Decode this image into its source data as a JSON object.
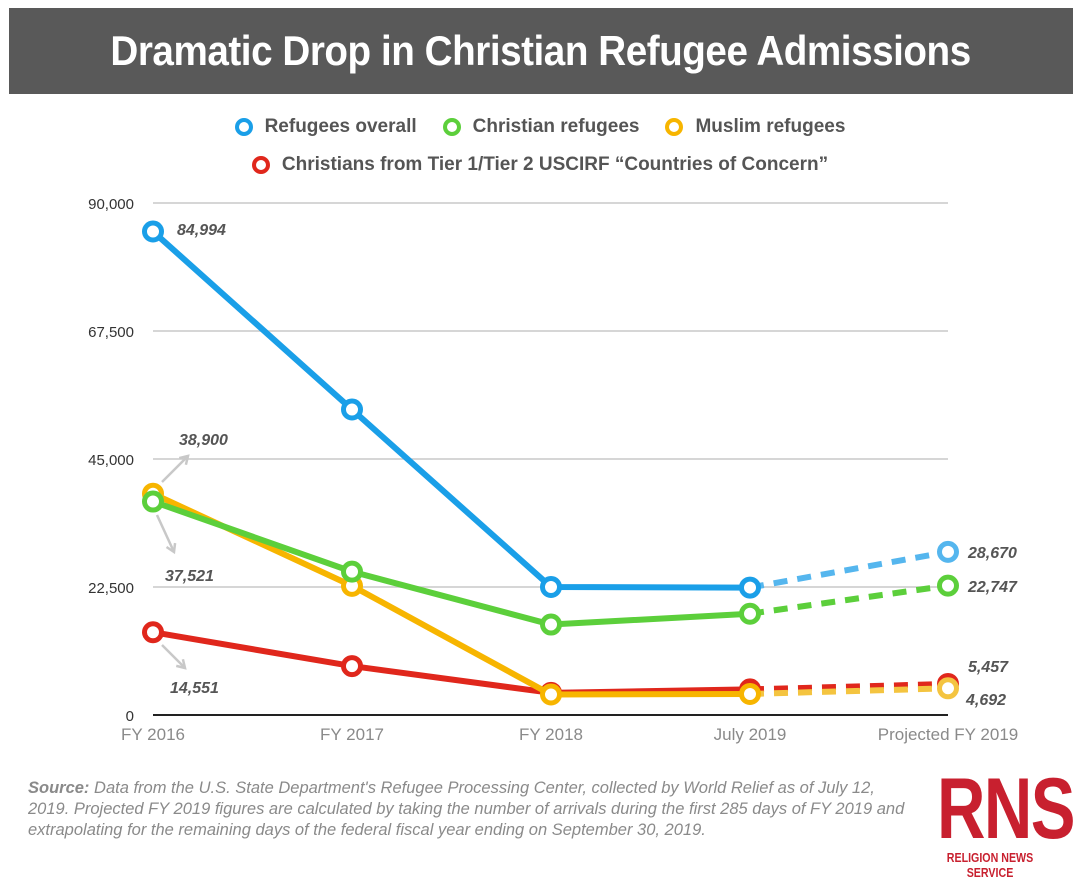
{
  "chart_data": {
    "type": "line",
    "title": "Dramatic Drop in Christian Refugee Admissions",
    "categories": [
      "FY 2016",
      "FY 2017",
      "FY 2018",
      "July 2019",
      "Projected FY 2019"
    ],
    "ylim": [
      0,
      90000
    ],
    "yticks": [
      "0",
      "22,500",
      "45,000",
      "67,500",
      "90,000"
    ],
    "ytick_values": [
      0,
      22500,
      45000,
      67500,
      90000
    ],
    "grid": true,
    "legend_position": "top-center",
    "projected_from_index": 3,
    "series": [
      {
        "name": "Refugees overall",
        "color": "#1a9fe8",
        "projected_color": "#55b6ee",
        "values": [
          84994,
          53700,
          22500,
          22400,
          28670
        ],
        "labels": {
          "0": "84,994",
          "4": "28,670"
        }
      },
      {
        "name": "Christian refugees",
        "color": "#5ccf3b",
        "projected_color": "#5ccf3b",
        "values": [
          37521,
          25200,
          15900,
          17800,
          22747
        ],
        "labels": {
          "0": "37,521",
          "4": "22,747"
        }
      },
      {
        "name": "Muslim refugees",
        "color": "#f7b500",
        "projected_color": "#f4c440",
        "values": [
          38900,
          22700,
          3600,
          3700,
          4692
        ],
        "labels": {
          "0": "38,900",
          "4": "4,692"
        }
      },
      {
        "name": "Christians from Tier 1/Tier 2 USCIRF “Countries of Concern”",
        "color": "#e0271c",
        "projected_color": "#e0271c",
        "values": [
          14551,
          8600,
          3900,
          4500,
          5457
        ],
        "labels": {
          "0": "14,551",
          "4": "5,457"
        }
      }
    ]
  },
  "source": {
    "label": "Source:",
    "text": " Data from the U.S. State Department's Refugee Processing Center, collected by World Relief as of July 12, 2019. Projected FY 2019 figures are calculated by taking the number of arrivals during the first 285 days of FY 2019 and extrapolating for the remaining days of the federal fiscal year ending on September 30, 2019."
  },
  "logo": {
    "letters": "RNS",
    "name": "RELIGION NEWS SERVICE",
    "color": "#c8202f"
  }
}
